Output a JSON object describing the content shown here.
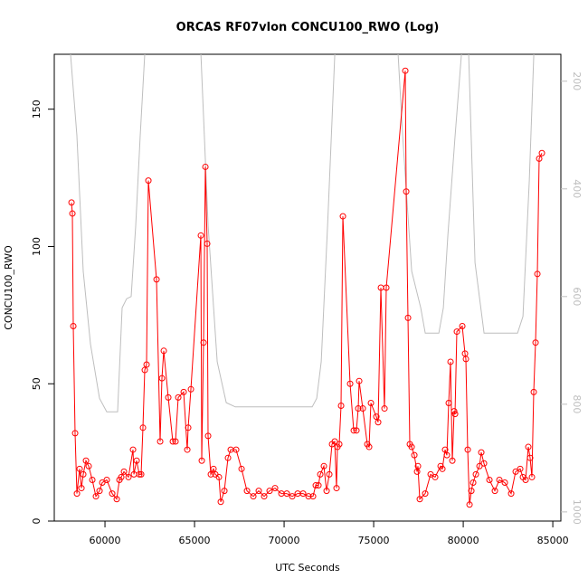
{
  "chart_data": {
    "type": "line",
    "title": "ORCAS RF07vlon CONCU100_RWO (Log)",
    "xlabel": "UTC Seconds",
    "ylabel": "CONCU100_RWO",
    "xlim": [
      57170,
      85450
    ],
    "xticks": [
      60000,
      65000,
      70000,
      75000,
      80000,
      85000
    ],
    "ylim": [
      0,
      170
    ],
    "yticks": [
      0,
      50,
      100,
      150
    ],
    "y2lim": [
      1017,
      150
    ],
    "y2ticks": [
      200,
      400,
      600,
      800,
      1000
    ],
    "series": [
      {
        "color": "#bebebe",
        "axis": "y2",
        "x": [
          58081,
          58434,
          58788,
          59192,
          59697,
          60101,
          60707,
          60960,
          61212,
          61465,
          61717,
          61970,
          62222,
          63737,
          65354,
          65758,
          66263,
          66768,
          67273,
          71566,
          71818,
          72071,
          72424,
          72828,
          74596,
          76364,
          76616,
          77121,
          77626,
          77879,
          78636,
          78889,
          79141,
          79545,
          79899,
          80101,
          80303,
          80657,
          81162,
          83030,
          83333,
          83687,
          83939,
          84444
        ],
        "values": [
          150,
          301,
          553,
          688,
          789,
          814,
          814,
          621,
          604,
          600,
          469,
          301,
          150,
          100,
          150,
          469,
          721,
          797,
          805,
          805,
          789,
          721,
          469,
          150,
          100,
          150,
          301,
          553,
          621,
          668,
          668,
          621,
          486,
          301,
          150,
          100,
          150,
          537,
          668,
          668,
          637,
          385,
          150,
          100
        ]
      },
      {
        "color": "#ff0000",
        "x": [
          58132,
          58182,
          58233,
          58334,
          58435,
          58586,
          58687,
          58788,
          58940,
          59091,
          59293,
          59495,
          59697,
          59849,
          60101,
          60404,
          60657,
          60808,
          60909,
          61061,
          61313,
          61566,
          61616,
          61768,
          61919,
          62020,
          62121,
          62222,
          62323,
          62424,
          62879,
          63081,
          63182,
          63283,
          63535,
          63788,
          63939,
          64091,
          64394,
          64596,
          64646,
          64798,
          65353,
          65404,
          65505,
          65606,
          65707,
          65757,
          65909,
          66060,
          66161,
          66363,
          66464,
          66666,
          66868,
          67020,
          67323,
          67626,
          67929,
          68282,
          68585,
          68888,
          69191,
          69494,
          69848,
          70151,
          70454,
          70757,
          71060,
          71363,
          71615,
          71767,
          71918,
          72019,
          72221,
          72373,
          72524,
          72676,
          72827,
          72928,
          72979,
          73080,
          73181,
          73282,
          73686,
          73888,
          74039,
          74140,
          74191,
          74393,
          74645,
          74746,
          74847,
          75150,
          75251,
          75403,
          75605,
          75706,
          76766,
          76817,
          76918,
          77019,
          77120,
          77271,
          77423,
          77473,
          77574,
          77877,
          78180,
          78433,
          78736,
          78837,
          78988,
          79089,
          79190,
          79291,
          79392,
          79493,
          79544,
          79645,
          79948,
          80099,
          80150,
          80251,
          80352,
          80453,
          80554,
          80705,
          80907,
          81008,
          81160,
          81463,
          81766,
          82018,
          82321,
          82675,
          82927,
          83180,
          83331,
          83483,
          83634,
          83735,
          83836,
          83937,
          84038,
          84139,
          84240,
          84392
        ],
        "values": [
          116,
          112,
          71,
          32,
          10,
          19,
          12,
          17,
          22,
          20,
          15,
          9,
          11,
          14,
          15,
          10,
          8,
          15,
          16,
          18,
          16,
          26,
          17,
          22,
          17,
          17,
          34,
          55,
          57,
          124,
          88,
          29,
          52,
          62,
          45,
          29,
          29,
          45,
          47,
          26,
          34,
          48,
          104,
          22,
          65,
          129,
          101,
          31,
          17,
          19,
          17,
          16,
          7,
          11,
          23,
          26,
          26,
          19,
          11,
          9,
          11,
          9,
          11,
          12,
          10,
          10,
          9,
          10,
          10,
          9,
          9,
          13,
          13,
          17,
          20,
          11,
          17,
          28,
          29,
          12,
          27,
          28,
          42,
          111,
          50,
          33,
          33,
          41,
          51,
          41,
          28,
          27,
          43,
          38,
          36,
          85,
          41,
          85,
          164,
          120,
          74,
          28,
          27,
          24,
          18,
          20,
          8,
          10,
          17,
          16,
          20,
          19,
          26,
          24,
          43,
          58,
          22,
          40,
          39,
          69,
          71,
          61,
          59,
          26,
          6,
          11,
          14,
          17,
          20,
          25,
          21,
          15,
          11,
          15,
          14,
          10,
          18,
          19,
          16,
          15,
          27,
          23,
          16,
          47,
          65,
          90,
          132,
          134
        ]
      }
    ]
  }
}
